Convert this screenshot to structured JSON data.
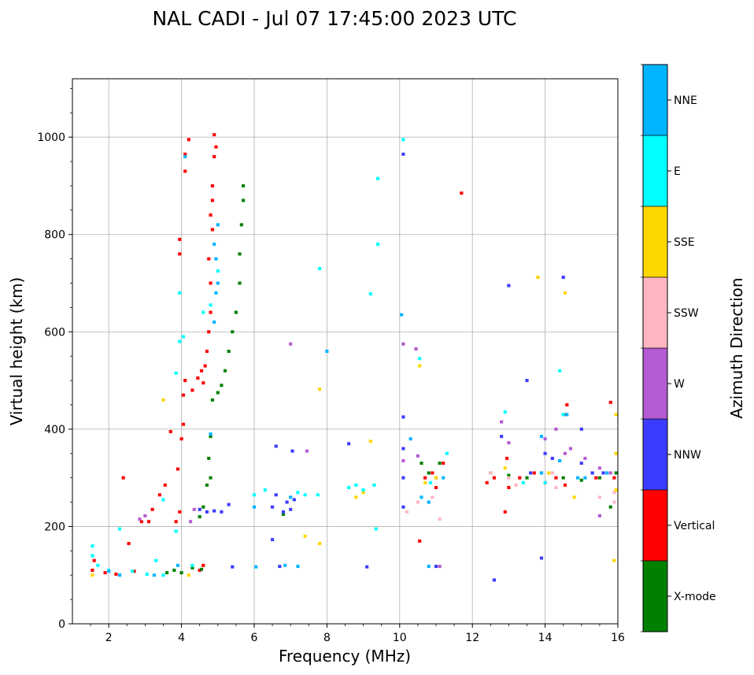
{
  "chart_data": {
    "type": "scatter",
    "title": "NAL CADI - Jul 07 17:45:00 2023 UTC",
    "xlabel": "Frequency (MHz)",
    "ylabel": "Virtual height (km)",
    "xlim": [
      1,
      16
    ],
    "ylim": [
      0,
      1120
    ],
    "x_ticks": [
      2,
      4,
      6,
      8,
      10,
      12,
      14,
      16
    ],
    "y_ticks": [
      0,
      200,
      400,
      600,
      800,
      1000
    ],
    "grid": true,
    "colorbar": {
      "label": "Azimuth Direction",
      "categories": [
        {
          "name": "X-mode",
          "color": "#008000"
        },
        {
          "name": "Vertical",
          "color": "#ff0000"
        },
        {
          "name": "NNW",
          "color": "#3c3cff"
        },
        {
          "name": "W",
          "color": "#b45ad2"
        },
        {
          "name": "SSW",
          "color": "#ffb6c1"
        },
        {
          "name": "SSE",
          "color": "#ffd700"
        },
        {
          "name": "E",
          "color": "#00ffff"
        },
        {
          "name": "NNE",
          "color": "#00b4ff"
        }
      ]
    },
    "series": [
      {
        "name": "Vertical",
        "points": [
          [
            1.55,
            110
          ],
          [
            1.6,
            130
          ],
          [
            1.9,
            105
          ],
          [
            2.2,
            102
          ],
          [
            2.4,
            300
          ],
          [
            2.55,
            165
          ],
          [
            2.7,
            108
          ],
          [
            2.9,
            210
          ],
          [
            3.1,
            210
          ],
          [
            3.2,
            235
          ],
          [
            3.4,
            265
          ],
          [
            3.55,
            285
          ],
          [
            3.7,
            395
          ],
          [
            3.85,
            210
          ],
          [
            3.95,
            230
          ],
          [
            3.9,
            318
          ],
          [
            4.0,
            380
          ],
          [
            4.05,
            410
          ],
          [
            4.05,
            470
          ],
          [
            4.1,
            500
          ],
          [
            4.2,
            995
          ],
          [
            4.1,
            965
          ],
          [
            4.1,
            930
          ],
          [
            3.95,
            790
          ],
          [
            3.95,
            760
          ],
          [
            4.3,
            480
          ],
          [
            4.45,
            505
          ],
          [
            4.55,
            520
          ],
          [
            4.6,
            495
          ],
          [
            4.65,
            530
          ],
          [
            4.7,
            560
          ],
          [
            4.75,
            600
          ],
          [
            4.8,
            640
          ],
          [
            4.8,
            700
          ],
          [
            4.75,
            750
          ],
          [
            4.85,
            810
          ],
          [
            4.8,
            840
          ],
          [
            4.85,
            870
          ],
          [
            4.85,
            900
          ],
          [
            4.9,
            960
          ],
          [
            4.9,
            1005
          ],
          [
            4.95,
            980
          ],
          [
            4.5,
            110
          ],
          [
            4.6,
            120
          ],
          [
            10.55,
            170
          ],
          [
            10.7,
            300
          ],
          [
            10.9,
            310
          ],
          [
            11.0,
            280
          ],
          [
            11.2,
            330
          ],
          [
            11.7,
            885
          ],
          [
            12.4,
            290
          ],
          [
            12.6,
            300
          ],
          [
            12.9,
            230
          ],
          [
            12.95,
            340
          ],
          [
            13.0,
            280
          ],
          [
            13.3,
            300
          ],
          [
            13.7,
            310
          ],
          [
            14.0,
            290
          ],
          [
            14.3,
            300
          ],
          [
            14.55,
            285
          ],
          [
            14.55,
            430
          ],
          [
            14.6,
            450
          ],
          [
            15.4,
            300
          ],
          [
            15.8,
            455
          ],
          [
            15.9,
            300
          ]
        ]
      },
      {
        "name": "X-mode",
        "points": [
          [
            3.6,
            105
          ],
          [
            3.8,
            110
          ],
          [
            4.0,
            105
          ],
          [
            4.3,
            115
          ],
          [
            4.55,
            112
          ],
          [
            4.5,
            220
          ],
          [
            4.6,
            240
          ],
          [
            4.7,
            285
          ],
          [
            4.8,
            300
          ],
          [
            4.75,
            340
          ],
          [
            4.8,
            385
          ],
          [
            4.85,
            460
          ],
          [
            5.0,
            475
          ],
          [
            5.1,
            490
          ],
          [
            5.2,
            520
          ],
          [
            5.3,
            560
          ],
          [
            5.4,
            600
          ],
          [
            5.5,
            640
          ],
          [
            5.6,
            700
          ],
          [
            5.6,
            760
          ],
          [
            5.65,
            820
          ],
          [
            5.7,
            870
          ],
          [
            5.7,
            900
          ],
          [
            6.8,
            225
          ],
          [
            10.6,
            330
          ],
          [
            10.8,
            310
          ],
          [
            11.0,
            300
          ],
          [
            11.1,
            330
          ],
          [
            12.5,
            310
          ],
          [
            13.0,
            305
          ],
          [
            13.5,
            300
          ],
          [
            13.9,
            310
          ],
          [
            14.5,
            300
          ],
          [
            15.0,
            295
          ],
          [
            15.5,
            300
          ],
          [
            15.8,
            240
          ],
          [
            15.95,
            310
          ]
        ]
      },
      {
        "name": "NNW",
        "points": [
          [
            4.5,
            235
          ],
          [
            4.7,
            230
          ],
          [
            4.9,
            232
          ],
          [
            5.1,
            230
          ],
          [
            5.3,
            245
          ],
          [
            5.4,
            117
          ],
          [
            6.5,
            240
          ],
          [
            6.6,
            265
          ],
          [
            6.8,
            230
          ],
          [
            6.9,
            250
          ],
          [
            7.0,
            235
          ],
          [
            7.1,
            255
          ],
          [
            6.6,
            365
          ],
          [
            6.5,
            173
          ],
          [
            6.7,
            118
          ],
          [
            7.05,
            355
          ],
          [
            8.6,
            370
          ],
          [
            9.1,
            117
          ],
          [
            10.1,
            965
          ],
          [
            10.1,
            425
          ],
          [
            10.1,
            360
          ],
          [
            10.1,
            300
          ],
          [
            10.1,
            240
          ],
          [
            11.0,
            118
          ],
          [
            12.6,
            90
          ],
          [
            12.8,
            385
          ],
          [
            13.0,
            695
          ],
          [
            13.5,
            500
          ],
          [
            13.6,
            310
          ],
          [
            13.9,
            135
          ],
          [
            14.0,
            350
          ],
          [
            14.2,
            340
          ],
          [
            14.5,
            712
          ],
          [
            15.0,
            400
          ],
          [
            15.0,
            330
          ],
          [
            15.3,
            310
          ],
          [
            15.6,
            310
          ]
        ]
      },
      {
        "name": "W",
        "points": [
          [
            2.85,
            215
          ],
          [
            3.0,
            222
          ],
          [
            4.25,
            210
          ],
          [
            4.35,
            235
          ],
          [
            7.45,
            355
          ],
          [
            7.0,
            575
          ],
          [
            10.1,
            575
          ],
          [
            10.1,
            335
          ],
          [
            10.45,
            565
          ],
          [
            10.5,
            345
          ],
          [
            11.1,
            118
          ],
          [
            12.8,
            415
          ],
          [
            13.0,
            372
          ],
          [
            14.0,
            380
          ],
          [
            14.3,
            400
          ],
          [
            14.55,
            350
          ],
          [
            14.7,
            360
          ],
          [
            15.1,
            340
          ],
          [
            15.5,
            320
          ],
          [
            15.5,
            222
          ],
          [
            15.8,
            310
          ]
        ]
      },
      {
        "name": "SSW",
        "points": [
          [
            10.2,
            230
          ],
          [
            10.5,
            250
          ],
          [
            10.9,
            260
          ],
          [
            11.1,
            215
          ],
          [
            12.5,
            310
          ],
          [
            13.0,
            300
          ],
          [
            13.2,
            285
          ],
          [
            14.2,
            310
          ],
          [
            14.3,
            280
          ],
          [
            15.5,
            260
          ],
          [
            15.9,
            270
          ],
          [
            15.9,
            250
          ]
        ]
      },
      {
        "name": "SSE",
        "points": [
          [
            1.55,
            100
          ],
          [
            3.5,
            460
          ],
          [
            4.2,
            100
          ],
          [
            7.4,
            180
          ],
          [
            7.8,
            165
          ],
          [
            7.8,
            482
          ],
          [
            8.8,
            260
          ],
          [
            9.0,
            270
          ],
          [
            9.2,
            375
          ],
          [
            10.55,
            530
          ],
          [
            10.7,
            290
          ],
          [
            11.0,
            300
          ],
          [
            12.9,
            320
          ],
          [
            13.8,
            712
          ],
          [
            14.1,
            310
          ],
          [
            14.55,
            680
          ],
          [
            14.8,
            260
          ],
          [
            15.9,
            130
          ],
          [
            15.95,
            350
          ],
          [
            15.95,
            430
          ],
          [
            15.95,
            275
          ]
        ]
      },
      {
        "name": "E",
        "points": [
          [
            1.55,
            140
          ],
          [
            1.55,
            160
          ],
          [
            1.7,
            120
          ],
          [
            2.0,
            110
          ],
          [
            2.3,
            195
          ],
          [
            2.65,
            108
          ],
          [
            3.05,
            102
          ],
          [
            3.3,
            130
          ],
          [
            3.5,
            100
          ],
          [
            3.5,
            255
          ],
          [
            3.85,
            190
          ],
          [
            3.95,
            680
          ],
          [
            3.95,
            580
          ],
          [
            3.85,
            515
          ],
          [
            4.05,
            590
          ],
          [
            4.3,
            120
          ],
          [
            4.6,
            640
          ],
          [
            4.8,
            655
          ],
          [
            5.0,
            725
          ],
          [
            6.0,
            265
          ],
          [
            6.3,
            275
          ],
          [
            7.2,
            270
          ],
          [
            7.4,
            265
          ],
          [
            7.75,
            265
          ],
          [
            7.8,
            730
          ],
          [
            8.6,
            280
          ],
          [
            8.8,
            285
          ],
          [
            9.0,
            275
          ],
          [
            9.3,
            285
          ],
          [
            9.4,
            915
          ],
          [
            9.4,
            780
          ],
          [
            9.2,
            678
          ],
          [
            9.35,
            195
          ],
          [
            10.1,
            995
          ],
          [
            10.55,
            545
          ],
          [
            10.85,
            290
          ],
          [
            11.3,
            350
          ],
          [
            12.9,
            435
          ],
          [
            13.4,
            290
          ],
          [
            14.0,
            290
          ],
          [
            14.4,
            520
          ],
          [
            14.5,
            430
          ]
        ]
      },
      {
        "name": "NNE",
        "points": [
          [
            2.0,
            108
          ],
          [
            2.3,
            100
          ],
          [
            3.25,
            100
          ],
          [
            3.9,
            120
          ],
          [
            4.1,
            960
          ],
          [
            4.9,
            620
          ],
          [
            4.95,
            680
          ],
          [
            5.0,
            700
          ],
          [
            4.95,
            750
          ],
          [
            4.9,
            780
          ],
          [
            5.0,
            820
          ],
          [
            4.8,
            390
          ],
          [
            6.0,
            240
          ],
          [
            6.05,
            117
          ],
          [
            6.85,
            120
          ],
          [
            7.0,
            260
          ],
          [
            7.2,
            118
          ],
          [
            8.0,
            560
          ],
          [
            10.05,
            635
          ],
          [
            10.3,
            380
          ],
          [
            10.8,
            118
          ],
          [
            10.6,
            260
          ],
          [
            10.8,
            250
          ],
          [
            11.2,
            300
          ],
          [
            13.9,
            385
          ],
          [
            13.9,
            310
          ],
          [
            14.4,
            335
          ],
          [
            14.6,
            430
          ],
          [
            14.9,
            300
          ],
          [
            15.1,
            300
          ],
          [
            15.7,
            310
          ]
        ]
      }
    ]
  }
}
